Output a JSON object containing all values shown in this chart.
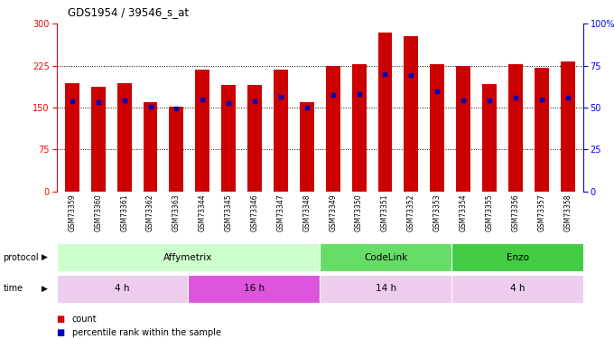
{
  "title": "GDS1954 / 39546_s_at",
  "samples": [
    "GSM73359",
    "GSM73360",
    "GSM73361",
    "GSM73362",
    "GSM73363",
    "GSM73344",
    "GSM73345",
    "GSM73346",
    "GSM73347",
    "GSM73348",
    "GSM73349",
    "GSM73350",
    "GSM73351",
    "GSM73352",
    "GSM73353",
    "GSM73354",
    "GSM73355",
    "GSM73356",
    "GSM73357",
    "GSM73358"
  ],
  "counts": [
    193,
    188,
    193,
    160,
    152,
    218,
    190,
    191,
    218,
    159,
    225,
    228,
    285,
    278,
    228,
    225,
    192,
    228,
    222,
    232
  ],
  "percentile_ranks_left": [
    162,
    160,
    163,
    151,
    148,
    165,
    158,
    162,
    170,
    150,
    173,
    174,
    210,
    208,
    180,
    163,
    163,
    168,
    165,
    168
  ],
  "ylim_left": [
    0,
    300
  ],
  "ylim_right": [
    0,
    100
  ],
  "yticks_left": [
    0,
    75,
    150,
    225,
    300
  ],
  "yticks_right": [
    0,
    25,
    50,
    75,
    100
  ],
  "bar_color": "#cc0000",
  "dot_color": "#0000bb",
  "bg_color": "#ffffff",
  "grid_color": "#000000",
  "protocol_groups": [
    {
      "label": "Affymetrix",
      "start": 0,
      "end": 9,
      "color": "#ccffcc"
    },
    {
      "label": "CodeLink",
      "start": 10,
      "end": 14,
      "color": "#66dd66"
    },
    {
      "label": "Enzo",
      "start": 15,
      "end": 19,
      "color": "#44cc44"
    }
  ],
  "time_groups": [
    {
      "label": "4 h",
      "start": 0,
      "end": 4,
      "color": "#eeccee"
    },
    {
      "label": "16 h",
      "start": 5,
      "end": 9,
      "color": "#dd55dd"
    },
    {
      "label": "14 h",
      "start": 10,
      "end": 14,
      "color": "#eeccee"
    },
    {
      "label": "4 h",
      "start": 15,
      "end": 19,
      "color": "#eeccee"
    }
  ],
  "xlabels_bg": "#cccccc",
  "bar_width": 0.55
}
